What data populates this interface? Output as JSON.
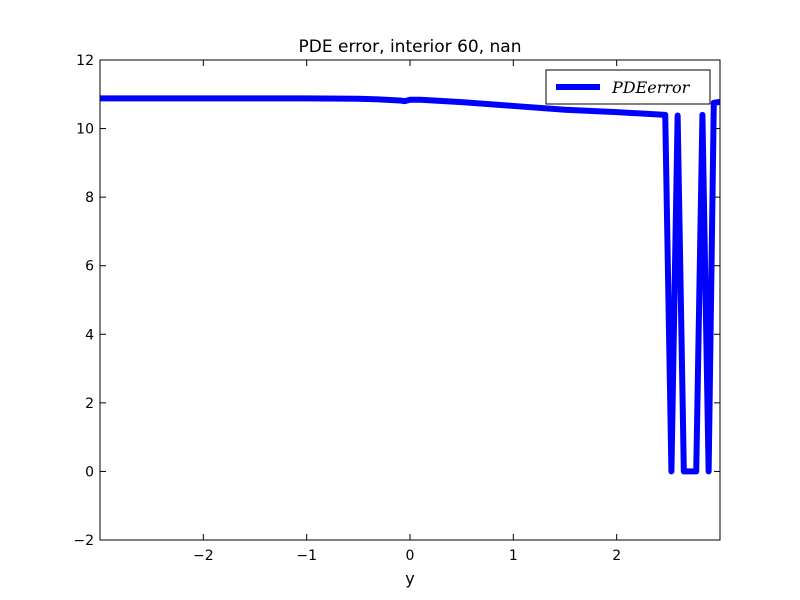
{
  "chart_data": {
    "type": "line",
    "title": "PDE error, interior 60, nan",
    "xlabel": "y",
    "ylabel": "",
    "xlim": [
      -3,
      3
    ],
    "ylim": [
      -2,
      12
    ],
    "x_ticks": [
      -2,
      -1,
      0,
      1,
      2
    ],
    "x_tick_labels": [
      "−2",
      "−1",
      "0",
      "1",
      "2"
    ],
    "y_ticks": [
      -2,
      0,
      2,
      4,
      6,
      8,
      10,
      12
    ],
    "y_tick_labels": [
      "−2",
      "0",
      "2",
      "4",
      "6",
      "8",
      "10",
      "12"
    ],
    "legend_position": "top-right",
    "series": [
      {
        "name": "PDEerror",
        "color": "#0000ff",
        "x": [
          -3.0,
          -2.5,
          -2.0,
          -1.5,
          -1.0,
          -0.5,
          -0.3,
          -0.1,
          -0.05,
          0.0,
          0.1,
          0.5,
          1.0,
          1.5,
          2.0,
          2.47,
          2.53,
          2.59,
          2.65,
          2.72,
          2.77,
          2.83,
          2.89,
          2.94,
          3.0
        ],
        "values": [
          10.88,
          10.88,
          10.88,
          10.88,
          10.88,
          10.87,
          10.85,
          10.82,
          10.8,
          10.84,
          10.84,
          10.77,
          10.66,
          10.55,
          10.48,
          10.4,
          0.0,
          10.38,
          0.0,
          0.0,
          0.0,
          10.4,
          0.0,
          10.75,
          10.78
        ]
      }
    ]
  }
}
